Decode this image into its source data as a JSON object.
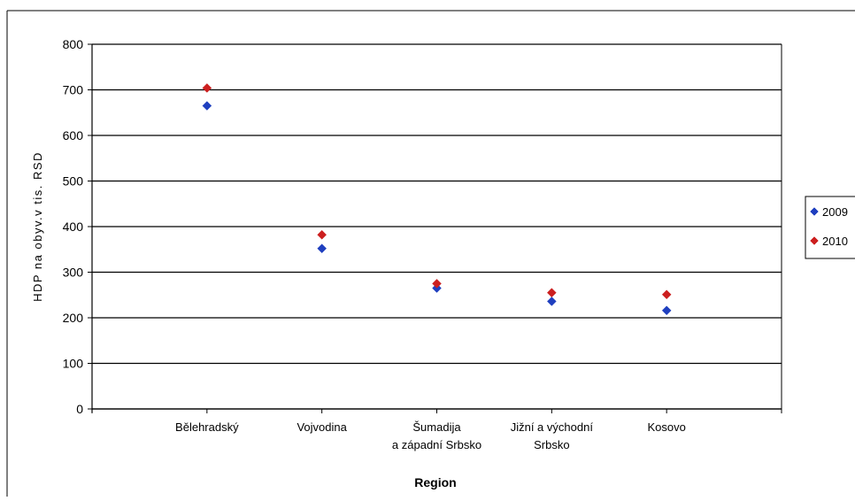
{
  "chart_data": {
    "type": "scatter",
    "title": "",
    "xlabel": "Region",
    "ylabel": "HDP na obyv.v tis. RSD",
    "categories": [
      [
        "Bělehradský"
      ],
      [
        "Vojvodina"
      ],
      [
        "Šumadija",
        "a západní Srbsko"
      ],
      [
        "Jižní a východní",
        "Srbsko"
      ],
      [
        "Kosovo"
      ]
    ],
    "ylim": [
      0,
      800
    ],
    "yticks": [
      0,
      100,
      200,
      300,
      400,
      500,
      600,
      700,
      800
    ],
    "grid": true,
    "legend_position": "right",
    "series": [
      {
        "name": "2009",
        "color": "#1f3fbf",
        "values": [
          665,
          352,
          265,
          236,
          216
        ]
      },
      {
        "name": "2010",
        "color": "#cc1f1f",
        "values": [
          704,
          382,
          275,
          255,
          251
        ]
      }
    ]
  }
}
